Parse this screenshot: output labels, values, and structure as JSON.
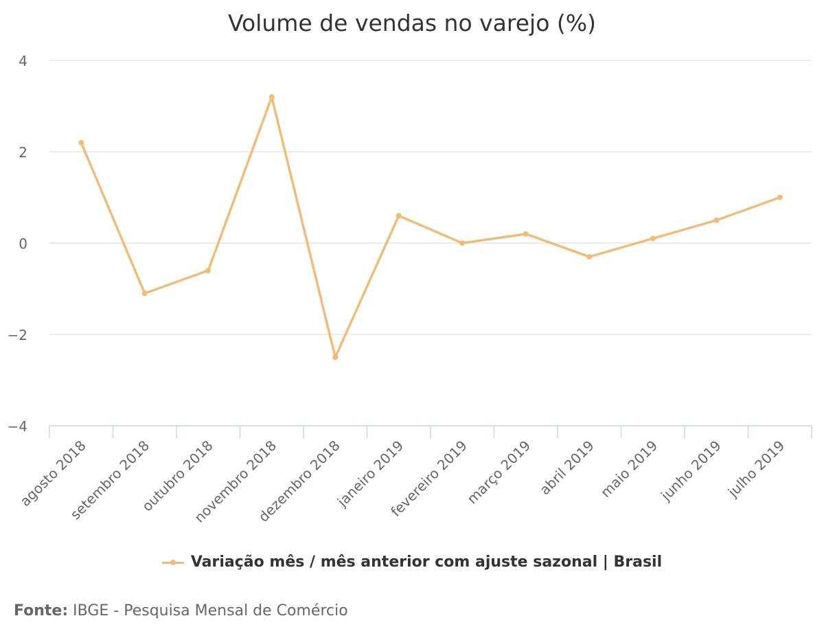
{
  "chart_data": {
    "type": "line",
    "title": "Volume de vendas no varejo (%)",
    "categories": [
      "agosto 2018",
      "setembro 2018",
      "outubro 2018",
      "novembro 2018",
      "dezembro 2018",
      "janeiro 2019",
      "fevereiro 2019",
      "março 2019",
      "abril 2019",
      "maio 2019",
      "junho 2019",
      "julho 2019"
    ],
    "series": [
      {
        "name": "Variação mês / mês anterior com ajuste sazonal | Brasil",
        "values": [
          2.2,
          -1.1,
          -0.6,
          3.2,
          -2.5,
          0.6,
          0.0,
          0.2,
          -0.3,
          0.1,
          0.5,
          1.0
        ],
        "color": "#f0bd78"
      }
    ],
    "ylim": [
      -4,
      4
    ],
    "yticks": [
      4,
      2,
      0,
      -2,
      -4
    ],
    "ytick_labels": [
      "4",
      "2",
      "0",
      "−2",
      "−4"
    ],
    "grid": true,
    "legend_position": "bottom"
  },
  "source": {
    "label": "Fonte:",
    "text": "IBGE - Pesquisa Mensal de Comércio"
  }
}
